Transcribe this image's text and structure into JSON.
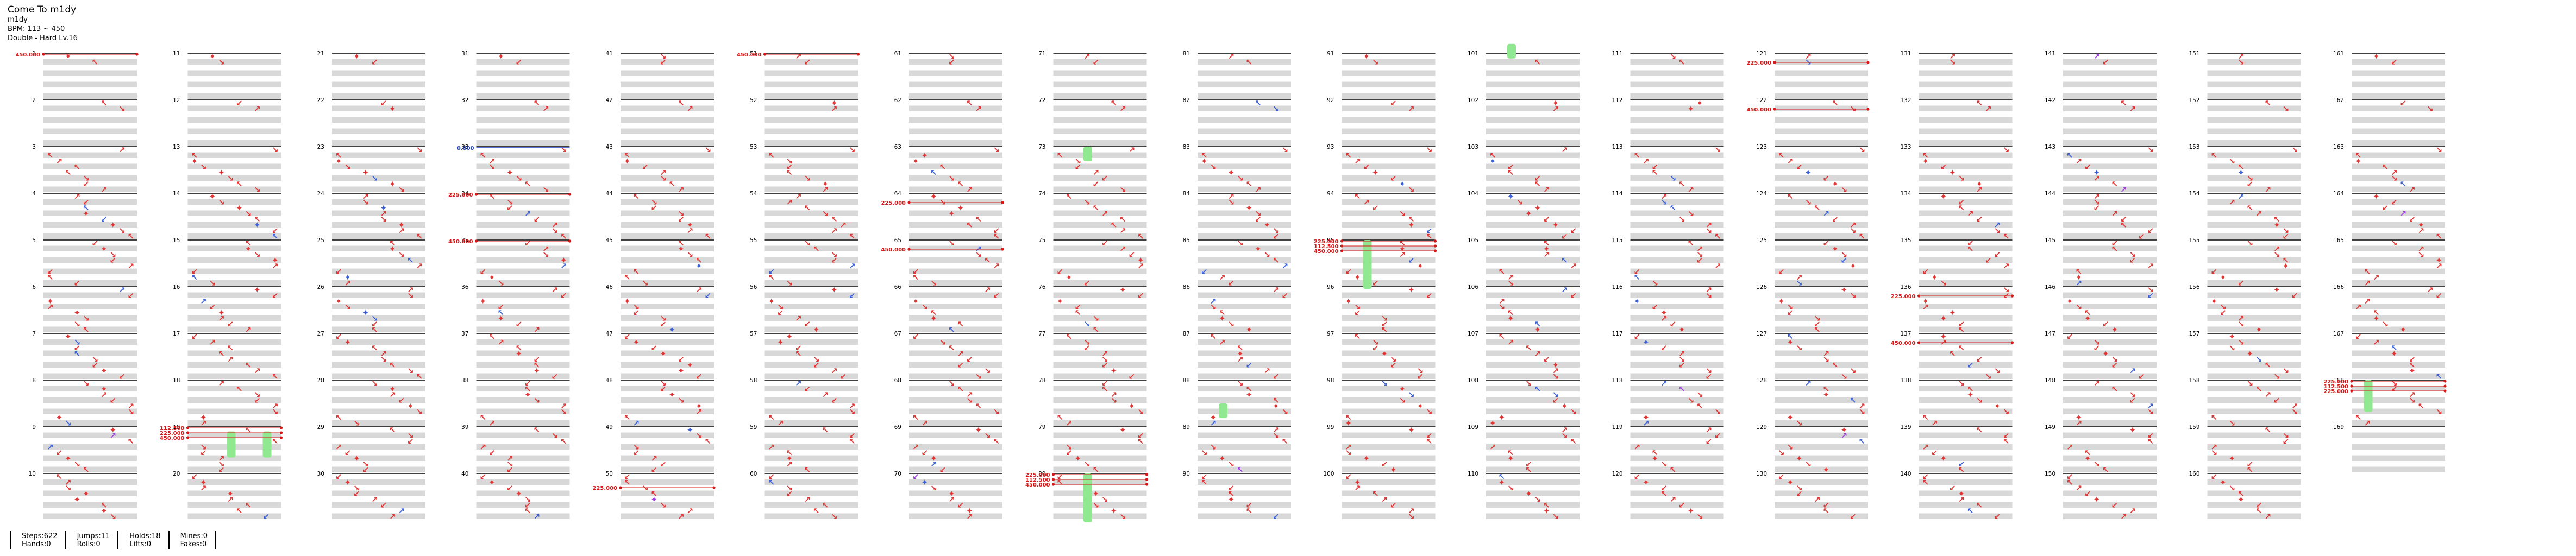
{
  "song": {
    "title": "Come To m1dy",
    "artist": "m1dy",
    "bpm_line": "BPM: 113 ~ 450",
    "difficulty_line": "Double - Hard Lv.16"
  },
  "stats": [
    {
      "name": "steps-hands",
      "lines": [
        "Steps:622",
        "Hands:0"
      ]
    },
    {
      "name": "jumps-rolls",
      "lines": [
        "Jumps:11",
        "Rolls:0"
      ]
    },
    {
      "name": "holds-lifts",
      "lines": [
        "Holds:18",
        "Lifts:0"
      ]
    },
    {
      "name": "mines-fakes",
      "lines": [
        "Mines:0",
        "Fakes:0"
      ]
    }
  ],
  "colors": {
    "arrow_red": "#e03535",
    "arrow_blue": "#3b5fd6",
    "arrow_yellow": "#e8c020",
    "arrow_purple": "#a040e0",
    "hold": "#90e890",
    "bpm_marker": "#d81818",
    "bpm_blue_marker": "#2040c0",
    "row_shade": "#d8d8d8"
  },
  "chart_data": {
    "type": "table",
    "columns": 17,
    "measures_per_column": 10,
    "panels_per_row": 10,
    "total_measures": 169,
    "arrow_glyphs": {
      "down-left": "↙",
      "up-left": "↖",
      "center": "✦",
      "up-right": "↗",
      "down-right": "↘",
      "left": "←",
      "right": "→",
      "up": "↑",
      "down": "↓"
    },
    "measure_numbers": [
      "1",
      "2",
      "3",
      "4",
      "5",
      "6",
      "7",
      "8",
      "9",
      "10",
      "11",
      "12",
      "13",
      "14",
      "15",
      "16",
      "17",
      "18",
      "19",
      "20",
      "21",
      "22",
      "23",
      "24",
      "25",
      "26",
      "27",
      "28",
      "29",
      "30",
      "31",
      "32",
      "33",
      "34",
      "35",
      "36",
      "37",
      "38",
      "39",
      "40",
      "41",
      "42",
      "43",
      "44",
      "45",
      "46",
      "47",
      "48",
      "49",
      "50",
      "51",
      "52",
      "53",
      "54",
      "55",
      "56",
      "57",
      "58",
      "59",
      "60",
      "61",
      "62",
      "63",
      "64",
      "65",
      "66",
      "67",
      "68",
      "69",
      "70",
      "71",
      "72",
      "73",
      "74",
      "75",
      "76",
      "77",
      "78",
      "79",
      "80",
      "81",
      "82",
      "83",
      "84",
      "85",
      "86",
      "87",
      "88",
      "89",
      "90",
      "91",
      "92",
      "93",
      "94",
      "95",
      "96",
      "97",
      "98",
      "99",
      "100",
      "101",
      "102",
      "103",
      "104",
      "105",
      "106",
      "107",
      "108",
      "109",
      "110",
      "111",
      "112",
      "113",
      "114",
      "115",
      "116",
      "117",
      "118",
      "119",
      "120",
      "121",
      "122",
      "123",
      "124",
      "125",
      "126",
      "127",
      "128",
      "129",
      "130",
      "131",
      "132",
      "133",
      "134",
      "135",
      "136",
      "137",
      "138",
      "139",
      "140",
      "141",
      "142",
      "143",
      "144",
      "145",
      "146",
      "147",
      "148",
      "149",
      "150",
      "151",
      "152",
      "153",
      "154",
      "155",
      "156",
      "157",
      "158",
      "159",
      "160",
      "161",
      "162",
      "163",
      "164",
      "165",
      "166",
      "167",
      "168",
      "169"
    ],
    "bpm_changes": [
      {
        "measure": 1,
        "offset": 0,
        "label": "450.000"
      },
      {
        "measure": 19,
        "offset": 0.0,
        "label": "112.500"
      },
      {
        "measure": 19,
        "offset": 0.3,
        "label": "225.000"
      },
      {
        "measure": 19,
        "offset": 0.6,
        "label": "450.000"
      },
      {
        "measure": 34,
        "offset": 0,
        "label": "225.000"
      },
      {
        "measure": 35,
        "offset": 0,
        "label": "450.000"
      },
      {
        "measure": 50,
        "offset": 0.8,
        "label": "225.000"
      },
      {
        "measure": 51,
        "offset": 0,
        "label": "450.000"
      },
      {
        "measure": 64,
        "offset": 0.5,
        "label": "225.000"
      },
      {
        "measure": 65,
        "offset": 0.5,
        "label": "450.000"
      },
      {
        "measure": 80,
        "offset": 0.0,
        "label": "225.000"
      },
      {
        "measure": 80,
        "offset": 0.3,
        "label": "112.500"
      },
      {
        "measure": 80,
        "offset": 0.6,
        "label": "450.000"
      },
      {
        "measure": 95,
        "offset": 0.0,
        "label": "225.000"
      },
      {
        "measure": 95,
        "offset": 0.3,
        "label": "112.500"
      },
      {
        "measure": 95,
        "offset": 0.6,
        "label": "450.000"
      },
      {
        "measure": 121,
        "offset": 0.5,
        "label": "225.000"
      },
      {
        "measure": 122,
        "offset": 0.5,
        "label": "450.000"
      },
      {
        "measure": 136,
        "offset": 0.5,
        "label": "225.000"
      },
      {
        "measure": 137,
        "offset": 0.5,
        "label": "450.000"
      },
      {
        "measure": 168,
        "offset": 0.0,
        "label": "225.000"
      },
      {
        "measure": 168,
        "offset": 0.3,
        "label": "112.500"
      },
      {
        "measure": 168,
        "offset": 0.6,
        "label": "225.000"
      }
    ],
    "blue_markers": [
      {
        "measure": 33,
        "offset": 0,
        "label": "0.000"
      }
    ]
  }
}
